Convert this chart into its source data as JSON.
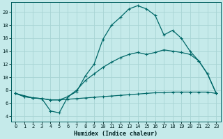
{
  "xlabel": "Humidex (Indice chaleur)",
  "bg_color": "#c5eaea",
  "grid_color": "#a8d4d4",
  "line_color": "#006868",
  "xlim": [
    -0.5,
    23.5
  ],
  "ylim": [
    3.2,
    21.5
  ],
  "yticks": [
    4,
    6,
    8,
    10,
    12,
    14,
    16,
    18,
    20
  ],
  "xticks": [
    0,
    1,
    2,
    3,
    4,
    5,
    6,
    7,
    8,
    9,
    10,
    11,
    12,
    13,
    14,
    15,
    16,
    17,
    18,
    19,
    20,
    21,
    22,
    23
  ],
  "line1_x": [
    0,
    1,
    2,
    3,
    4,
    5,
    6,
    7,
    8,
    9,
    10,
    11,
    12,
    13,
    14,
    15,
    16,
    17,
    18,
    19,
    20,
    21,
    22,
    23
  ],
  "line1_y": [
    7.5,
    7.0,
    6.8,
    6.7,
    6.5,
    6.5,
    6.6,
    6.7,
    6.8,
    6.9,
    7.0,
    7.1,
    7.2,
    7.3,
    7.4,
    7.5,
    7.6,
    7.6,
    7.7,
    7.7,
    7.7,
    7.7,
    7.7,
    7.5
  ],
  "line2_x": [
    0,
    1,
    2,
    3,
    4,
    5,
    6,
    7,
    8,
    9,
    10,
    11,
    12,
    13,
    14,
    15,
    16,
    17,
    18,
    19,
    20,
    21,
    22,
    23
  ],
  "line2_y": [
    7.5,
    7.0,
    6.8,
    6.7,
    6.5,
    6.5,
    7.0,
    8.0,
    9.5,
    10.5,
    11.5,
    12.3,
    13.0,
    13.5,
    13.8,
    13.5,
    13.8,
    14.2,
    14.0,
    13.8,
    13.5,
    12.5,
    10.5,
    7.5
  ],
  "line3_x": [
    0,
    2,
    3,
    4,
    5,
    6,
    7,
    8,
    9,
    10,
    11,
    12,
    13,
    14,
    15,
    16,
    17,
    18,
    19,
    20,
    21,
    22,
    23
  ],
  "line3_y": [
    7.5,
    6.8,
    6.7,
    4.8,
    4.5,
    7.0,
    7.8,
    10.2,
    12.0,
    15.8,
    18.0,
    19.2,
    20.5,
    21.0,
    20.5,
    19.5,
    16.5,
    17.2,
    16.0,
    14.0,
    12.5,
    10.5,
    7.5
  ]
}
